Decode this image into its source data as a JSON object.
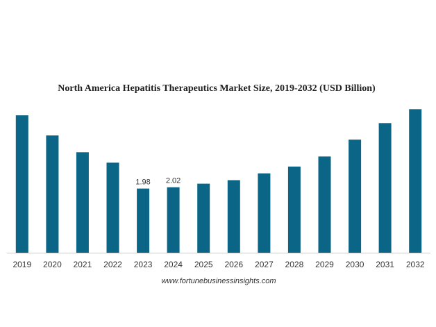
{
  "chart_data": {
    "type": "bar",
    "title": "North America Hepatitis Therapeutics Market Size, 2019-2032 (USD Billion)",
    "xlabel": "",
    "ylabel": "",
    "categories": [
      "2019",
      "2020",
      "2021",
      "2022",
      "2023",
      "2024",
      "2025",
      "2026",
      "2027",
      "2028",
      "2029",
      "2030",
      "2031",
      "2032"
    ],
    "values": [
      4.24,
      3.62,
      3.1,
      2.78,
      1.98,
      2.02,
      2.13,
      2.24,
      2.45,
      2.66,
      2.97,
      3.49,
      4.0,
      4.43
    ],
    "data_labels": [
      null,
      null,
      null,
      null,
      "1.98",
      "2.02",
      null,
      null,
      null,
      null,
      null,
      null,
      null,
      null
    ],
    "ylim": [
      0,
      4.5
    ],
    "grid": false,
    "legend": "none",
    "bar_color": "#0b6587",
    "axis_color": "#cccccc"
  },
  "source_text": "www.fortunebusinessinsights.com"
}
